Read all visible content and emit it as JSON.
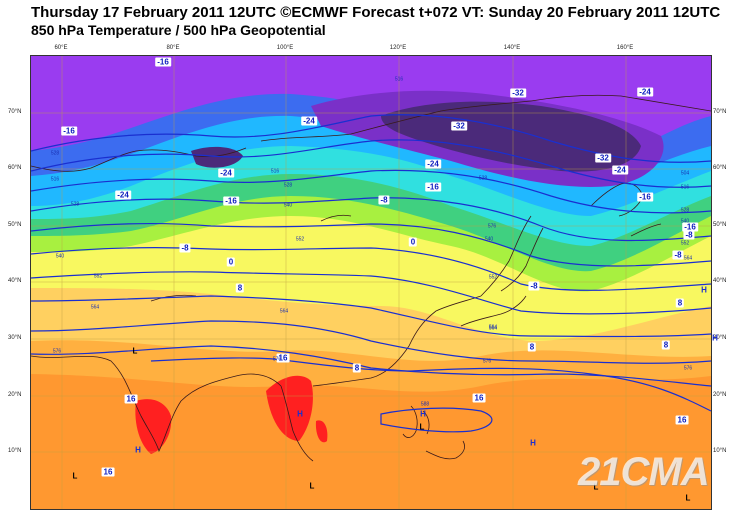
{
  "title": {
    "line1": "Thursday 17 February 2011 12UTC ©ECMWF Forecast t+072 VT: Sunday 20 February 2011 12UTC",
    "line2": "850 hPa Temperature / 500 hPa Geopotential"
  },
  "axes": {
    "longitude_labels": [
      "60°E",
      "80°E",
      "100°E",
      "120°E",
      "140°E",
      "160°E"
    ],
    "latitude_labels_left": [
      "70°N",
      "60°N",
      "50°N",
      "40°N",
      "30°N",
      "20°N",
      "10°N"
    ],
    "latitude_labels_right": [
      "70°N",
      "60°N",
      "50°N",
      "40°N",
      "30°N",
      "20°N",
      "10°N"
    ]
  },
  "temperature_labels": [
    "-16",
    "-16",
    "-24",
    "-24",
    "-24",
    "-32",
    "-32",
    "-32",
    "-24",
    "-24",
    "-16",
    "-16",
    "-8",
    "-8",
    "-24",
    "-16",
    "0",
    "0",
    "-8",
    "-8",
    "8",
    "-8",
    "-16",
    "8",
    "8",
    "16",
    "8",
    "16",
    "8",
    "16",
    "16",
    "16"
  ],
  "geopotential_labels": [
    "528",
    "516",
    "528",
    "516",
    "540",
    "528",
    "552",
    "540",
    "564",
    "564",
    "552",
    "576",
    "576",
    "564",
    "576",
    "528",
    "540",
    "552",
    "564",
    "516",
    "504",
    "516",
    "528",
    "540",
    "552",
    "564",
    "576",
    "588",
    "576"
  ],
  "pressure_centers": [
    "L",
    "L",
    "L",
    "H",
    "H",
    "H",
    "H",
    "H",
    "L",
    "H",
    "L",
    "L"
  ],
  "watermark": "21CMA",
  "colors": {
    "deep_violet": "#4b2a7a",
    "violet": "#7a30c8",
    "purple": "#9a3cf0",
    "blue": "#3c6cf0",
    "cyan": "#20b8ff",
    "aqua": "#30e0e0",
    "green": "#40d080",
    "light_green": "#a8f040",
    "yellow": "#f8f860",
    "light_orange": "#ffd060",
    "orange": "#ffb040",
    "dark_orange": "#ff9830",
    "red": "#ff2020",
    "contour": "#1a2fd0"
  }
}
